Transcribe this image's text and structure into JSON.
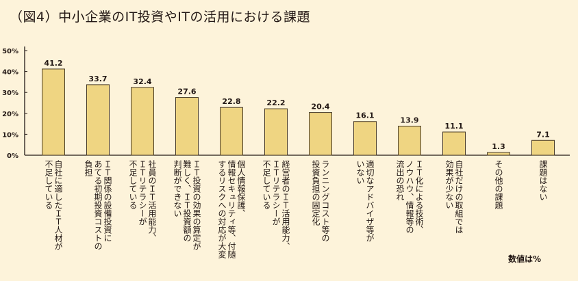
{
  "title": "（図4）中小企業のIT投資やITの活用における課題",
  "unit_note": "数値は%",
  "colors": {
    "background": "#fdf3da",
    "bar_fill": "#efd582",
    "bar_stroke": "#4a3c28",
    "axis": "#231815",
    "text": "#231815"
  },
  "chart_data": {
    "type": "bar",
    "title": "（図4）中小企業のIT投資やITの活用における課題",
    "xlabel": "",
    "ylabel": "",
    "ylim": [
      0,
      50
    ],
    "yticks": [
      0,
      10,
      20,
      30,
      40,
      50
    ],
    "ytick_labels": [
      "0%",
      "10%",
      "20%",
      "30%",
      "40%",
      "50%"
    ],
    "grid": false,
    "categories": [
      [
        "自社に適したＩＴ人材が",
        "不足している"
      ],
      [
        "ＩＴ関係の設備投資に",
        "あてる初期投資コストの",
        "負担"
      ],
      [
        "社員のＩＴ活用能力、",
        "ＩＴリテラシーが",
        "不足している"
      ],
      [
        "ＩＴ投資の効果の算定が",
        "難しく、ＩＴ投資額の",
        "判断ができない"
      ],
      [
        "個人情報保護、",
        "情報セキュリティ等、付随",
        "するリスクへの対応が大変"
      ],
      [
        "経営者のＩＴ活用能力、",
        "ＩＴリテラシーが",
        "不足している"
      ],
      [
        "ランニングコスト等の",
        "投資負担の固定化"
      ],
      [
        "適切なアドバイザ等が",
        "いない"
      ],
      [
        "ＩＴ化による技術、",
        "ノウハウ、情報等の",
        "流出の恐れ"
      ],
      [
        "自社だけの取組では",
        "効果が少ない"
      ],
      [
        "その他の課題"
      ],
      [
        "課題はない"
      ]
    ],
    "values": [
      41.2,
      33.7,
      32.4,
      27.6,
      22.8,
      22.2,
      20.4,
      16.1,
      13.9,
      11.1,
      1.3,
      7.1
    ],
    "value_labels": [
      "41.2",
      "33.7",
      "32.4",
      "27.6",
      "22.8",
      "22.2",
      "20.4",
      "16.1",
      "13.9",
      "11.1",
      "1.3",
      "7.1"
    ]
  }
}
